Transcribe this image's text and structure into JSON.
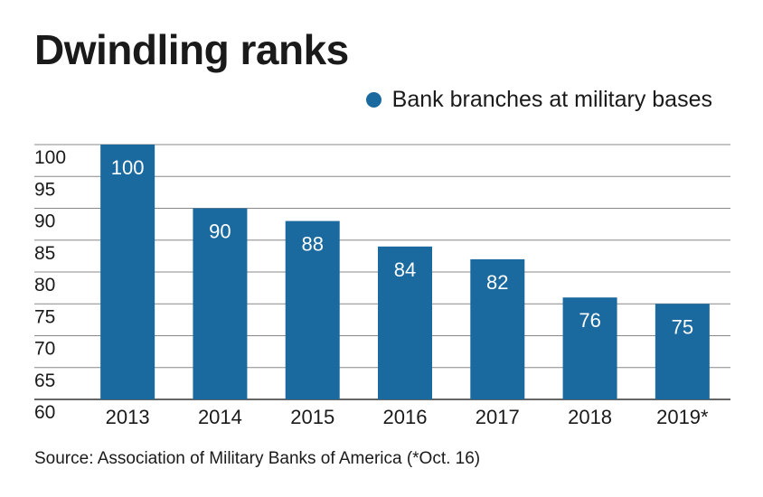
{
  "title": "Dwindling ranks",
  "source": "Source: Association of Military Banks of America (*Oct. 16)",
  "colors": {
    "bar": "#1a699f",
    "grid": "#888888",
    "text": "#1a1a1a",
    "label": "#ffffff"
  },
  "chart_data": {
    "type": "bar",
    "title": "Dwindling ranks",
    "categories": [
      "2013",
      "2014",
      "2015",
      "2016",
      "2017",
      "2018",
      "2019*"
    ],
    "series": [
      {
        "name": "Bank branches at military bases",
        "values": [
          100,
          90,
          88,
          84,
          82,
          76,
          75
        ]
      }
    ],
    "data_labels": [
      "100",
      "90",
      "88",
      "84",
      "82",
      "76",
      "75"
    ],
    "yticks": [
      60,
      65,
      70,
      75,
      80,
      85,
      90,
      95,
      100
    ],
    "ylim": [
      60,
      100
    ],
    "xlabel": "",
    "ylabel": "",
    "grid": true,
    "legend_position": "top-right"
  }
}
